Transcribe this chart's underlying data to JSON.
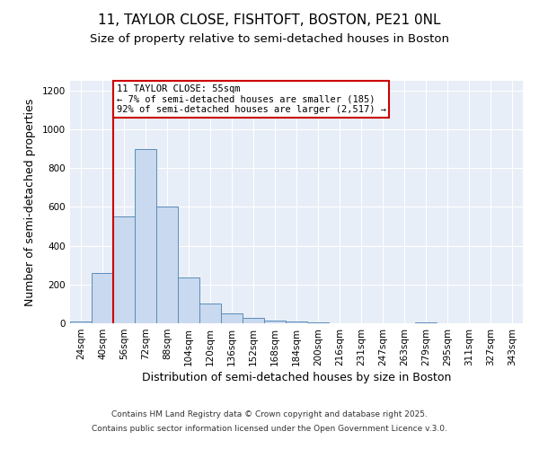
{
  "title_line1": "11, TAYLOR CLOSE, FISHTOFT, BOSTON, PE21 0NL",
  "title_line2": "Size of property relative to semi-detached houses in Boston",
  "xlabel": "Distribution of semi-detached houses by size in Boston",
  "ylabel": "Number of semi-detached properties",
  "categories": [
    "24sqm",
    "40sqm",
    "56sqm",
    "72sqm",
    "88sqm",
    "104sqm",
    "120sqm",
    "136sqm",
    "152sqm",
    "168sqm",
    "184sqm",
    "200sqm",
    "216sqm",
    "231sqm",
    "247sqm",
    "263sqm",
    "279sqm",
    "295sqm",
    "311sqm",
    "327sqm",
    "343sqm"
  ],
  "values": [
    10,
    260,
    550,
    900,
    600,
    235,
    100,
    50,
    30,
    15,
    10,
    5,
    0,
    0,
    0,
    0,
    5,
    0,
    0,
    0,
    0
  ],
  "bar_color": "#c9d9ef",
  "bar_edge_color": "#5b8db8",
  "vline_color": "#cc0000",
  "vline_x": 1.5,
  "annotation_text": "11 TAYLOR CLOSE: 55sqm\n← 7% of semi-detached houses are smaller (185)\n92% of semi-detached houses are larger (2,517) →",
  "annotation_box_facecolor": "#ffffff",
  "annotation_box_edgecolor": "#cc0000",
  "ylim": [
    0,
    1250
  ],
  "yticks": [
    0,
    200,
    400,
    600,
    800,
    1000,
    1200
  ],
  "bg_color": "#e8eef7",
  "fig_bg": "#ffffff",
  "title_fontsize": 11,
  "subtitle_fontsize": 9.5,
  "axis_label_fontsize": 9,
  "tick_fontsize": 7.5,
  "annotation_fontsize": 7.5,
  "footer_fontsize": 6.5,
  "footer_line1": "Contains HM Land Registry data © Crown copyright and database right 2025.",
  "footer_line2": "Contains public sector information licensed under the Open Government Licence v.3.0."
}
